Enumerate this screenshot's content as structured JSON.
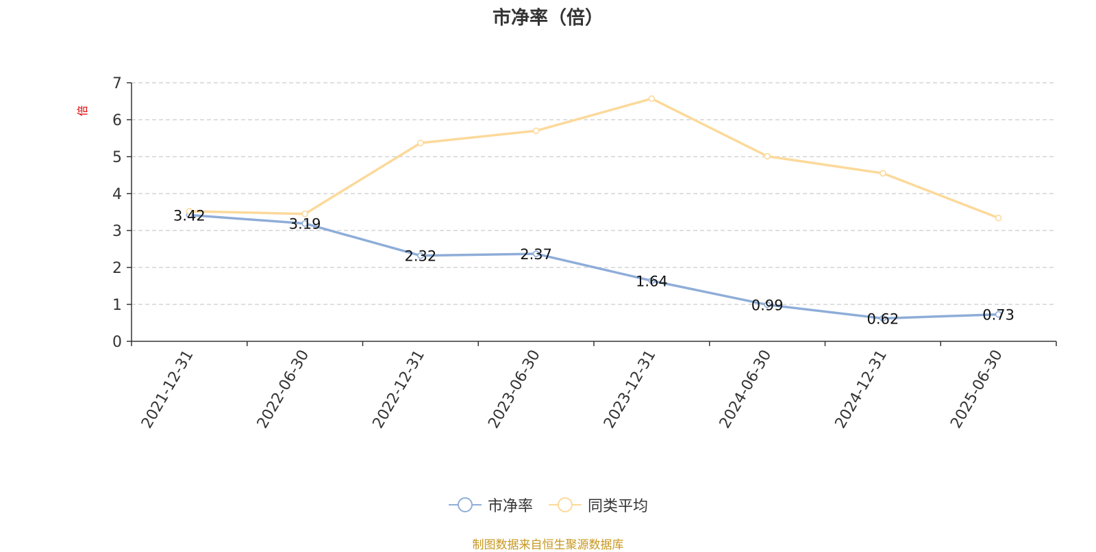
{
  "chart_data": {
    "type": "line",
    "title": "市净率（倍）",
    "ylabel": "倍",
    "categories": [
      "2021-12-31",
      "2022-06-30",
      "2022-12-31",
      "2023-06-30",
      "2023-12-31",
      "2024-06-30",
      "2024-12-31",
      "2025-06-30"
    ],
    "ylim": [
      0,
      7
    ],
    "yticks": [
      0,
      1,
      2,
      3,
      4,
      5,
      6,
      7
    ],
    "grid": true,
    "legend_position": "bottom",
    "series": [
      {
        "name": "市净率",
        "color": "#8eadd8",
        "values": [
          3.42,
          3.19,
          2.32,
          2.37,
          1.64,
          0.99,
          0.62,
          0.73
        ],
        "labels": [
          "3.42",
          "3.19",
          "2.32",
          "2.37",
          "1.64",
          "0.99",
          "0.62",
          "0.73"
        ]
      },
      {
        "name": "同类平均",
        "color": "#fcd99a",
        "values": [
          3.52,
          3.45,
          5.37,
          5.7,
          6.57,
          5.01,
          4.55,
          3.34
        ]
      }
    ]
  },
  "source_note": "制图数据来自恒生聚源数据库",
  "colors": {
    "axis": "#333333",
    "grid": "#cccccc",
    "ylabel": "#e00000",
    "source": "#c7971f"
  }
}
